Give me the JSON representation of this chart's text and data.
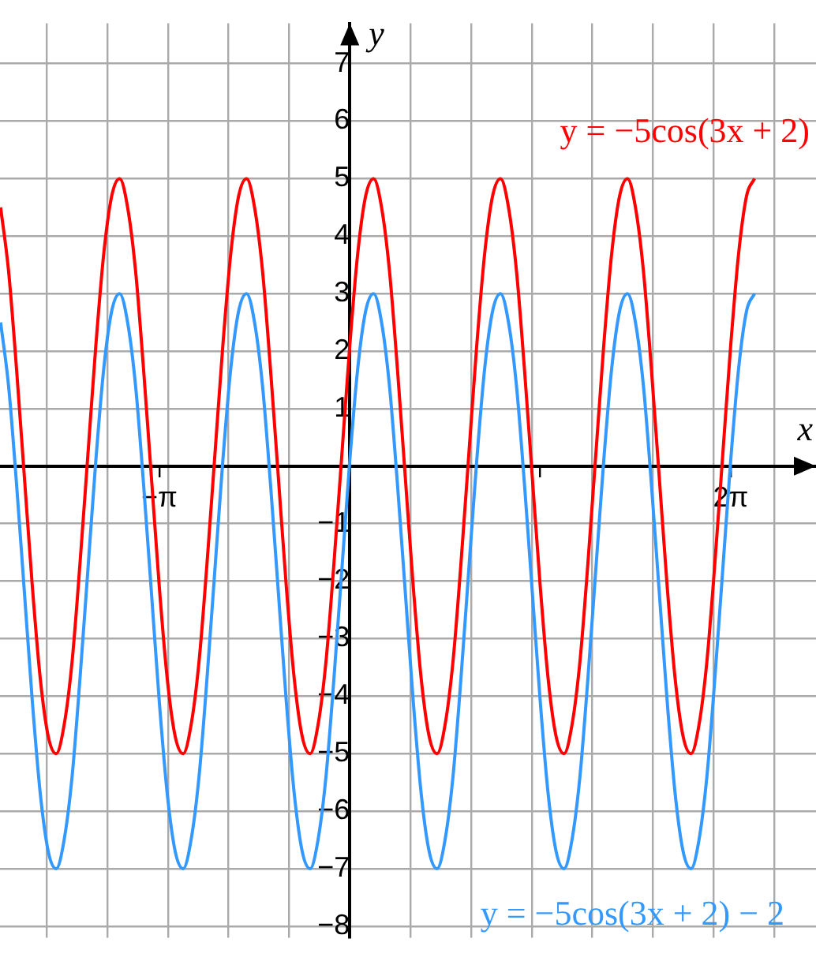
{
  "chart_data": {
    "type": "line",
    "xlabel": "x",
    "ylabel": "y",
    "grid": true,
    "legend": false,
    "marker": "none",
    "line_style": "solid",
    "xlim": [
      -5.77,
      7.69
    ],
    "ylim": [
      -8.2,
      7.7
    ],
    "xticks": [
      {
        "value": -5,
        "label": null
      },
      {
        "value": -4,
        "label": null
      },
      {
        "value": -3.1416,
        "label": "−π"
      },
      {
        "value": -3,
        "label": null
      },
      {
        "value": -2,
        "label": null
      },
      {
        "value": -1,
        "label": null
      },
      {
        "value": 1,
        "label": null
      },
      {
        "value": 2,
        "label": null
      },
      {
        "value": 3,
        "label": null
      },
      {
        "value": 3.1416,
        "label": null
      },
      {
        "value": 4,
        "label": null
      },
      {
        "value": 5,
        "label": null
      },
      {
        "value": 6,
        "label": null
      },
      {
        "value": 6.2832,
        "label": "2π"
      },
      {
        "value": 7,
        "label": null
      }
    ],
    "yticks": [
      -8,
      -7,
      -6,
      -5,
      -4,
      -3,
      -2,
      -1,
      1,
      2,
      3,
      4,
      5,
      6,
      7
    ],
    "x": [
      -5.76,
      -5.629,
      -5.498,
      -5.367,
      -5.236,
      -5.105,
      -4.974,
      -4.843,
      -4.712,
      -4.581,
      -4.451,
      -4.32,
      -4.189,
      -4.058,
      -3.927,
      -3.796,
      -3.665,
      -3.534,
      -3.403,
      -3.272,
      -3.142,
      -3.011,
      -2.88,
      -2.749,
      -2.618,
      -2.487,
      -2.356,
      -2.225,
      -2.094,
      -1.963,
      -1.833,
      -1.702,
      -1.571,
      -1.44,
      -1.309,
      -1.178,
      -1.047,
      -0.916,
      -0.785,
      -0.654,
      -0.524,
      -0.393,
      -0.262,
      -0.131,
      0,
      0.131,
      0.262,
      0.393,
      0.524,
      0.654,
      0.785,
      0.916,
      1.047,
      1.178,
      1.309,
      1.44,
      1.571,
      1.702,
      1.833,
      1.963,
      2.094,
      2.225,
      2.356,
      2.487,
      2.618,
      2.749,
      2.88,
      3.011,
      3.142,
      3.272,
      3.403,
      3.534,
      3.665,
      3.796,
      3.927,
      4.058,
      4.189,
      4.32,
      4.451,
      4.581,
      4.712,
      4.843,
      4.974,
      5.105,
      5.236,
      5.367,
      5.498,
      5.629,
      5.76,
      5.89,
      6.021,
      6.152,
      6.283,
      6.414,
      6.545,
      6.676
    ],
    "series": [
      {
        "name": "y = −5cos(3x + 2)",
        "color": "#ff0000",
        "values": [
          4.5,
          3.4,
          1.7,
          -0.2,
          -2.1,
          -3.7,
          -4.7,
          -5.0,
          -4.5,
          -3.4,
          -1.7,
          0.2,
          2.1,
          3.7,
          4.7,
          5.0,
          4.5,
          3.4,
          1.7,
          -0.2,
          -2.1,
          -3.7,
          -4.7,
          -5.0,
          -4.5,
          -3.4,
          -1.7,
          0.2,
          2.1,
          3.7,
          4.7,
          5.0,
          4.5,
          3.4,
          1.7,
          -0.2,
          -2.1,
          -3.7,
          -4.7,
          -5.0,
          -4.5,
          -3.4,
          -1.7,
          0.2,
          2.1,
          3.7,
          4.7,
          5.0,
          4.5,
          3.4,
          1.7,
          -0.2,
          -2.1,
          -3.7,
          -4.7,
          -5.0,
          -4.5,
          -3.4,
          -1.7,
          0.2,
          2.1,
          3.7,
          4.7,
          5.0,
          4.5,
          3.4,
          1.7,
          -0.2,
          -2.1,
          -3.7,
          -4.7,
          -5.0,
          -4.5,
          -3.4,
          -1.7,
          0.2,
          2.1,
          3.7,
          4.7,
          5.0,
          4.5,
          3.4,
          1.7,
          -0.2,
          -2.1,
          -3.7,
          -4.7,
          -5.0,
          -4.5,
          -3.4,
          -1.7,
          0.2,
          2.1,
          3.7,
          4.7,
          5.0
        ]
      },
      {
        "name": "y = −5cos(3x + 2) − 2",
        "color": "#3399ff",
        "values": [
          2.5,
          1.4,
          -0.3,
          -2.2,
          -4.1,
          -5.7,
          -6.7,
          -7.0,
          -6.5,
          -5.4,
          -3.7,
          -1.8,
          0.1,
          1.7,
          2.7,
          3.0,
          2.5,
          1.4,
          -0.3,
          -2.2,
          -4.1,
          -5.7,
          -6.7,
          -7.0,
          -6.5,
          -5.4,
          -3.7,
          -1.8,
          0.1,
          1.7,
          2.7,
          3.0,
          2.5,
          1.4,
          -0.3,
          -2.2,
          -4.1,
          -5.7,
          -6.7,
          -7.0,
          -6.5,
          -5.4,
          -3.7,
          -1.8,
          0.1,
          1.7,
          2.7,
          3.0,
          2.5,
          1.4,
          -0.3,
          -2.2,
          -4.1,
          -5.7,
          -6.7,
          -7.0,
          -6.5,
          -5.4,
          -3.7,
          -1.8,
          0.1,
          1.7,
          2.7,
          3.0,
          2.5,
          1.4,
          -0.3,
          -2.2,
          -4.1,
          -5.7,
          -6.7,
          -7.0,
          -6.5,
          -5.4,
          -3.7,
          -1.8,
          0.1,
          1.7,
          2.7,
          3.0,
          2.5,
          1.4,
          -0.3,
          -2.2,
          -4.1,
          -5.7,
          -6.7,
          -7.0,
          -6.5,
          -5.4,
          -3.7,
          -1.8,
          0.1,
          1.7,
          2.7,
          3.0
        ]
      }
    ]
  }
}
